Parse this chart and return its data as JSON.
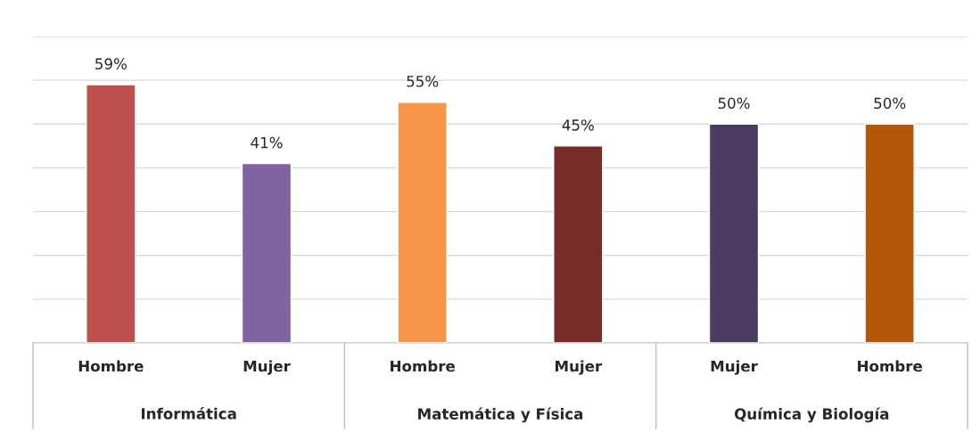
{
  "chart_data": {
    "type": "bar",
    "categories": [
      "Hombre",
      "Mujer",
      "Hombre",
      "Mujer",
      "Mujer",
      "Hombre"
    ],
    "values": [
      59,
      41,
      55,
      45,
      50,
      50
    ],
    "colors": [
      "#c0504d",
      "#8064a2",
      "#f79646",
      "#772c2a",
      "#4d3b62",
      "#b65708"
    ],
    "value_labels": [
      "59%",
      "41%",
      "55%",
      "45%",
      "50%",
      "50%"
    ],
    "annotations": [
      "Informática",
      "Matemática y Física",
      "Química y Biología"
    ],
    "ylim": [
      0,
      70
    ],
    "yticks": [
      {
        "value": 0,
        "label": null
      },
      {
        "value": 10,
        "label": null
      },
      {
        "value": 20,
        "label": null
      },
      {
        "value": 30,
        "label": null
      },
      {
        "value": 40,
        "label": null
      },
      {
        "value": 50,
        "label": null
      },
      {
        "value": 60,
        "label": null
      },
      {
        "value": 70,
        "label": null
      }
    ],
    "tick_labels": "x",
    "grid": "y",
    "legend": false
  }
}
